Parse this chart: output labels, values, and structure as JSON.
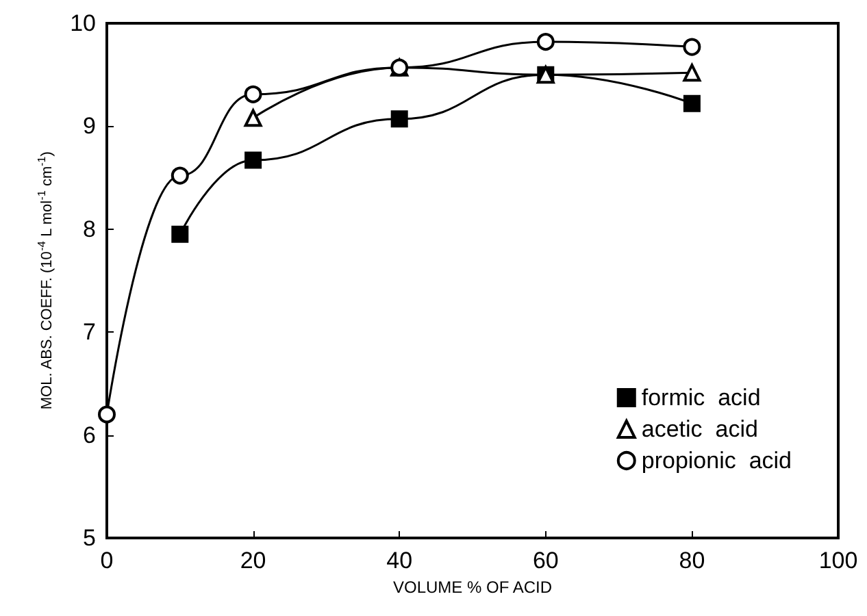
{
  "chart_data": {
    "type": "line",
    "xlabel": "VOLUME % OF ACID",
    "ylabel": "MOL. ABS. COEFF. (10$^{-4}$ L mol$^{-1}$ cm$^{-1}$)",
    "xlim": [
      0,
      100
    ],
    "xticks": [
      0,
      20,
      40,
      60,
      80,
      100
    ],
    "ylim": [
      5,
      10
    ],
    "yticks": [
      5,
      6,
      7,
      8,
      9,
      10
    ],
    "grid": false,
    "legend": "bottom right",
    "series": [
      {
        "name": "formic  acid",
        "color": "#000000",
        "marker": "square",
        "x": [
          10,
          20,
          40,
          60,
          80
        ],
        "values": [
          7.95,
          8.67,
          9.07,
          9.5,
          9.22
        ]
      },
      {
        "name": "acetic  acid",
        "color": "#000000",
        "marker": "triangle",
        "x": [
          20,
          40,
          60,
          80
        ],
        "values": [
          9.08,
          9.57,
          9.5,
          9.52
        ]
      },
      {
        "name": "propionic  acid",
        "color": "#000000",
        "marker": "circle",
        "x": [
          0,
          10,
          20,
          40,
          60,
          80
        ],
        "values": [
          6.2,
          8.52,
          9.31,
          9.57,
          9.82,
          9.77
        ]
      }
    ]
  }
}
